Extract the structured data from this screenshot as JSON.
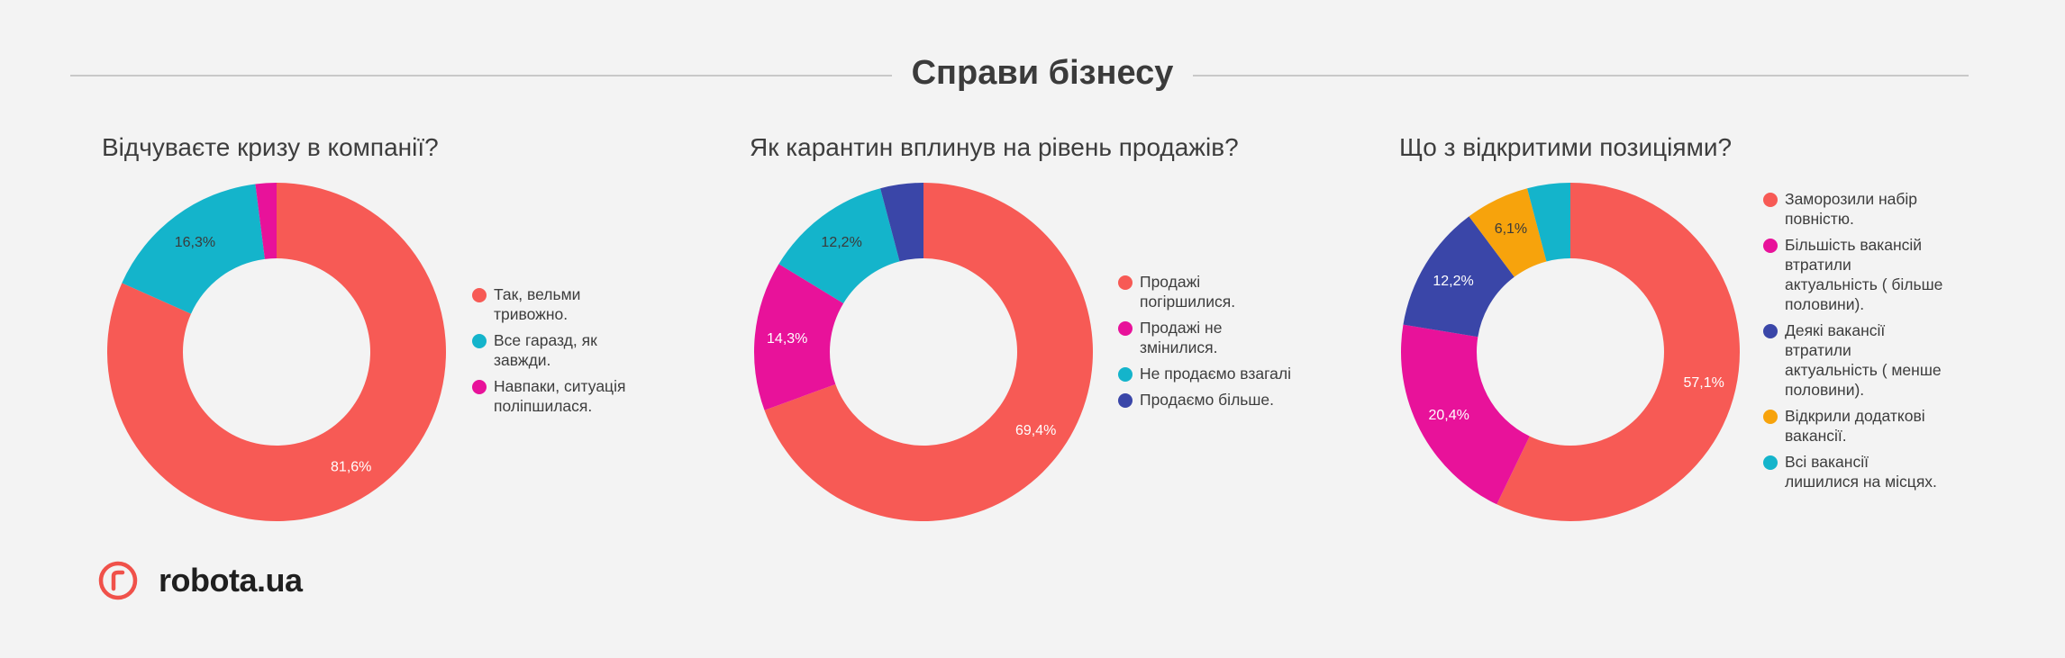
{
  "header": {
    "title": "Справи бізнесу"
  },
  "brand": {
    "name": "robota.ua",
    "color": "#f0514a"
  },
  "chart_data": [
    {
      "type": "pie",
      "title": "Відчуваєте кризу в компанії?",
      "categories": [
        "Так, вельми тривожно.",
        "Все гаразд, як завжди.",
        "Навпаки, ситуація поліпшилася."
      ],
      "values": [
        81.6,
        16.3,
        2.0
      ],
      "labels": [
        "81,6%",
        "16,3%",
        ""
      ],
      "colors": [
        "#f75a55",
        "#14b4cb",
        "#e8129a"
      ],
      "legend_position": "right"
    },
    {
      "type": "pie",
      "title": "Як карантин вплинув на рівень продажів?",
      "categories": [
        "Продажі погіршилися.",
        "Продажі не змінилися.",
        "Не продаємо взагалі",
        "Продаємо більше."
      ],
      "values": [
        69.4,
        14.3,
        12.2,
        4.1
      ],
      "labels": [
        "69,4%",
        "14,3%",
        "12,2%",
        ""
      ],
      "colors": [
        "#f75a55",
        "#e8129a",
        "#14b4cb",
        "#3a46a8"
      ],
      "legend_position": "right"
    },
    {
      "type": "pie",
      "title": "Що з відкритими позиціями?",
      "categories": [
        "Заморозили набір повністю.",
        "Більшість вакансій втратили актуальність ( більше половини).",
        "Деякі вакансії втратили актуальність ( менше половини).",
        "Відкрили додаткові вакансії.",
        "Всі вакансії лишилися на місцях."
      ],
      "values": [
        57.1,
        20.4,
        12.2,
        6.1,
        4.1
      ],
      "labels": [
        "57,1%",
        "20,4%",
        "12,2%",
        "6,1%",
        ""
      ],
      "colors": [
        "#f75a55",
        "#e8129a",
        "#3a46a8",
        "#f7a30c",
        "#14b4cb"
      ],
      "legend_position": "right"
    }
  ]
}
